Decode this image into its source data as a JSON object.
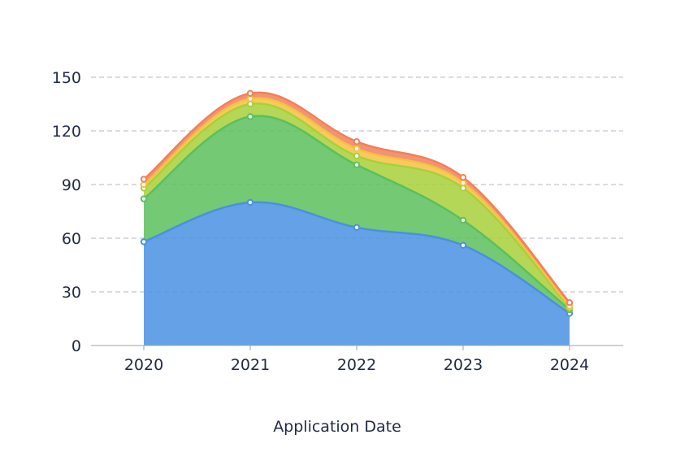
{
  "chart_data": {
    "type": "area",
    "stacked": true,
    "smooth": true,
    "categories": [
      "2020",
      "2021",
      "2022",
      "2023",
      "2024"
    ],
    "xlabel": "Application Date",
    "ylabel": "",
    "ylim": [
      0,
      150
    ],
    "yticks": [
      0,
      30,
      60,
      90,
      120,
      150
    ],
    "grid": true,
    "series": [
      {
        "color": "#4a90e2",
        "values": [
          58,
          80,
          66,
          56,
          18
        ]
      },
      {
        "color": "#5cbf5c",
        "values": [
          24,
          48,
          35,
          14,
          2
        ]
      },
      {
        "color": "#a8d03a",
        "values": [
          6,
          7,
          5,
          18,
          1
        ]
      },
      {
        "color": "#f5c242",
        "values": [
          2,
          3,
          4,
          3,
          1
        ]
      },
      {
        "color": "#f2805a",
        "values": [
          3,
          3,
          4,
          3,
          2
        ]
      }
    ]
  }
}
